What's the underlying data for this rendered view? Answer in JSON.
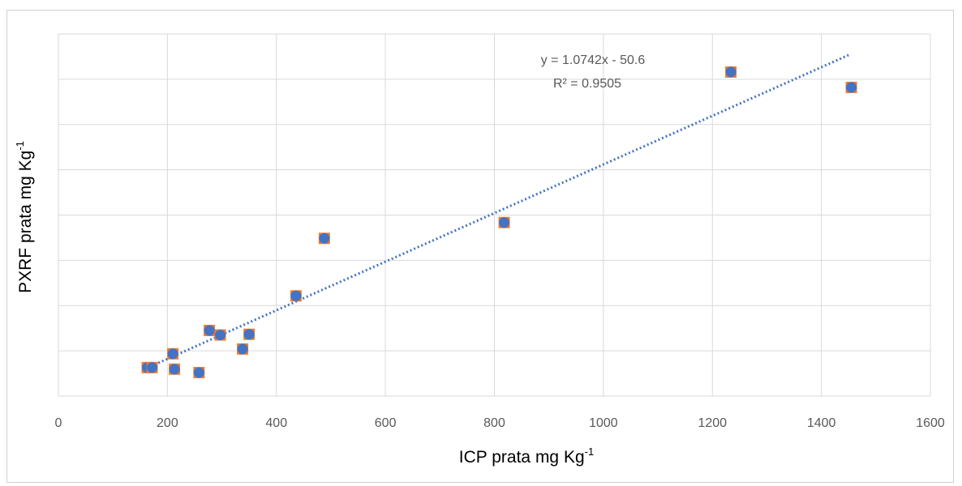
{
  "chart_data": {
    "type": "scatter",
    "title": "",
    "xlabel": "ICP prata mg Kg",
    "xlabel_sup": "-1",
    "ylabel": "PXRF prata mg Kg",
    "ylabel_sup": "-1",
    "xlim": [
      0,
      1600
    ],
    "x_ticks": [
      0,
      200,
      400,
      600,
      800,
      1000,
      1200,
      1400,
      1600
    ],
    "ylim": [
      0,
      1600
    ],
    "y_gridlines": [
      200,
      400,
      600,
      800,
      1000,
      1200,
      1400,
      1600
    ],
    "y_tick_labels_shown": false,
    "grid": true,
    "legend": "none",
    "series": [
      {
        "points": [
          {
            "x": 163,
            "y": 126
          },
          {
            "x": 172,
            "y": 126
          },
          {
            "x": 210,
            "y": 187
          },
          {
            "x": 213,
            "y": 119
          },
          {
            "x": 258,
            "y": 104
          },
          {
            "x": 277,
            "y": 290
          },
          {
            "x": 297,
            "y": 270
          },
          {
            "x": 338,
            "y": 208
          },
          {
            "x": 350,
            "y": 273
          },
          {
            "x": 436,
            "y": 443
          },
          {
            "x": 488,
            "y": 697
          },
          {
            "x": 818,
            "y": 767
          },
          {
            "x": 1234,
            "y": 1432
          },
          {
            "x": 1455,
            "y": 1364
          }
        ],
        "marker_color": "#4472C4",
        "marker_edge_color": "#ED7D31"
      }
    ],
    "trendline": {
      "type": "linear",
      "slope": 1.0742,
      "intercept": -50.6,
      "x_range": [
        163,
        1450
      ],
      "color": "#4472C4",
      "style": "dotted",
      "equation_label": "y = 1.0742x - 50.6",
      "r2_label": "R² = 0.9505"
    }
  }
}
